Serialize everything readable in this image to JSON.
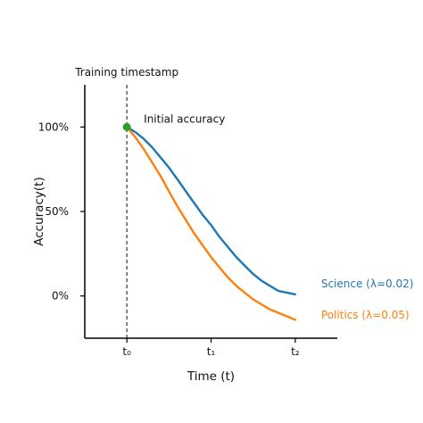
{
  "chart_data": {
    "type": "line",
    "xlabel": "Time (t)",
    "ylabel": "Accuracy(t)",
    "x_ticks": [
      {
        "x": 0,
        "label": "t₀"
      },
      {
        "x": 1,
        "label": "t₁"
      },
      {
        "x": 2,
        "label": "t₂"
      }
    ],
    "y_ticks": [
      {
        "y": 1.0,
        "label": "100%"
      },
      {
        "y": 0.5,
        "label": "50%"
      },
      {
        "y": 0.0,
        "label": "0%"
      }
    ],
    "xlim": [
      -0.5,
      2.5
    ],
    "ylim": [
      -0.25,
      1.25
    ],
    "grid": false,
    "series": [
      {
        "name": "Science (λ=0.02)",
        "color": "#1f77b4",
        "x": [
          0,
          0.1,
          0.2,
          0.3,
          0.4,
          0.5,
          0.6,
          0.7,
          0.8,
          0.9,
          1.0,
          1.1,
          1.2,
          1.3,
          1.4,
          1.5,
          1.6,
          1.7,
          1.8,
          1.9,
          2.0
        ],
        "y": [
          1.0,
          0.97,
          0.93,
          0.88,
          0.82,
          0.76,
          0.69,
          0.62,
          0.55,
          0.48,
          0.42,
          0.35,
          0.29,
          0.23,
          0.18,
          0.13,
          0.09,
          0.06,
          0.03,
          0.02,
          0.01
        ]
      },
      {
        "name": "Politics (λ=0.05)",
        "color": "#ff7f0e",
        "x": [
          0,
          0.1,
          0.2,
          0.3,
          0.4,
          0.5,
          0.6,
          0.7,
          0.8,
          0.9,
          1.0,
          1.1,
          1.2,
          1.3,
          1.4,
          1.5,
          1.6,
          1.7,
          1.8,
          1.9,
          2.0
        ],
        "y": [
          1.0,
          0.94,
          0.87,
          0.79,
          0.71,
          0.62,
          0.53,
          0.45,
          0.37,
          0.3,
          0.23,
          0.17,
          0.11,
          0.06,
          0.02,
          -0.02,
          -0.05,
          -0.08,
          -0.1,
          -0.12,
          -0.14
        ]
      }
    ],
    "annotations": {
      "vline": {
        "x": 0,
        "label": "Training timestamp",
        "style": "dashed"
      },
      "point": {
        "x": 0,
        "y": 1.0,
        "label": "Initial accuracy",
        "color": "#2ca02c"
      }
    }
  }
}
